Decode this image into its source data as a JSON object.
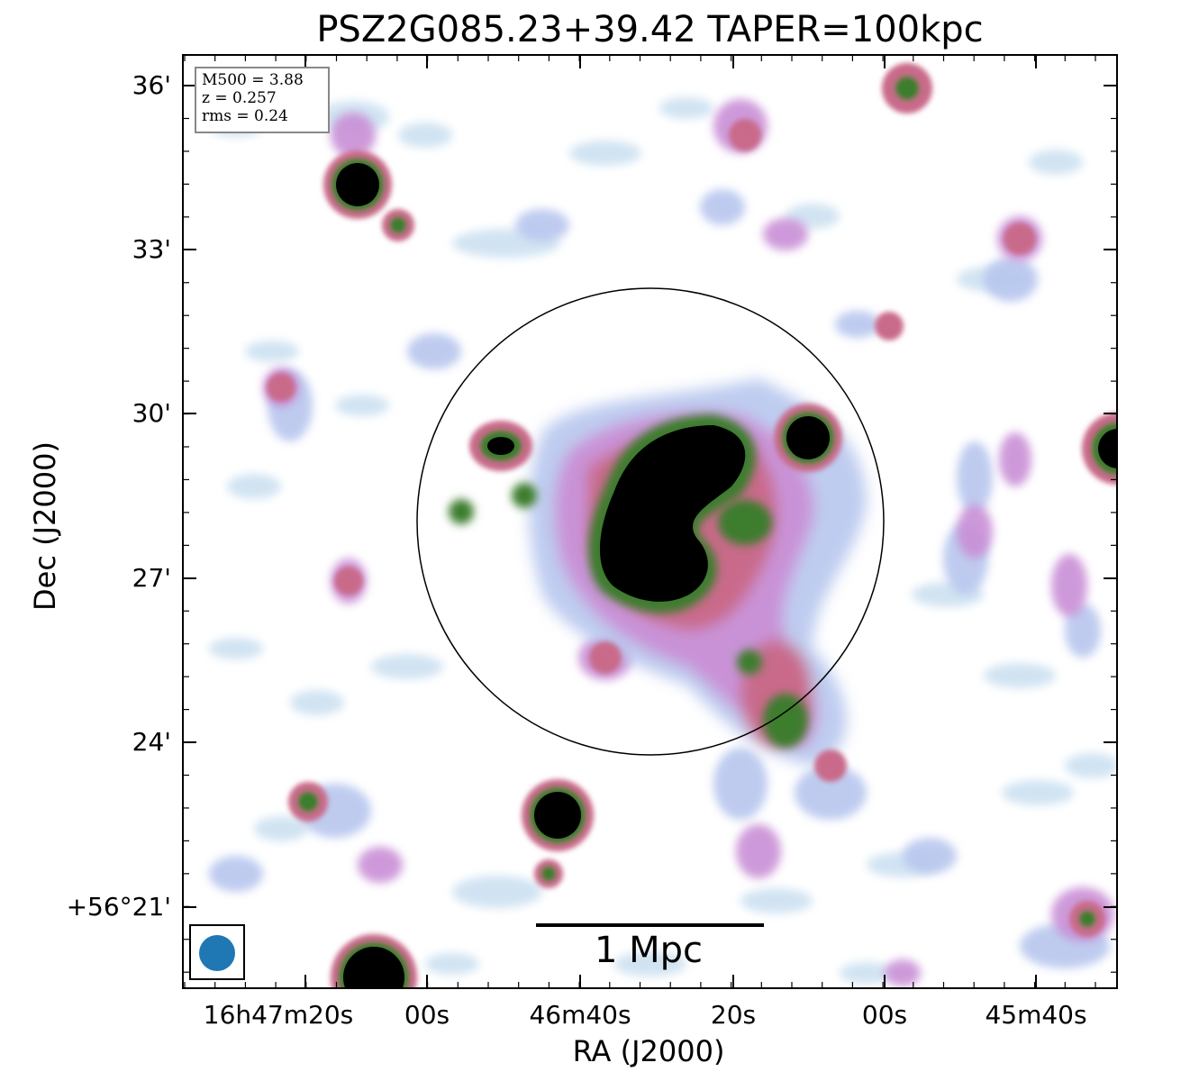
{
  "title": "PSZ2G085.23+39.42 TAPER=100kpc",
  "info": {
    "m500": "M500 = 3.88",
    "z": "z = 0.257",
    "rms": "rms = 0.24"
  },
  "axes": {
    "xlabel": "RA (J2000)",
    "ylabel": "Dec (J2000)",
    "x_ticks": [
      "16h47m20s",
      "00s",
      "46m40s",
      "20s",
      "00s",
      "45m40s"
    ],
    "y_ticks": [
      "36'",
      "33'",
      "30'",
      "27'",
      "24'",
      "+56°21'"
    ]
  },
  "scalebar": {
    "label": "1 Mpc"
  },
  "colors": {
    "faint": "#c9dff0",
    "low": "#b7c6ee",
    "mid": "#c98fd6",
    "high": "#c96a8a",
    "peak_green": "#3e7d2e",
    "core": "#000000",
    "beam": "#1f77b4"
  },
  "icons": {
    "beam": "beam-ellipse-icon"
  }
}
